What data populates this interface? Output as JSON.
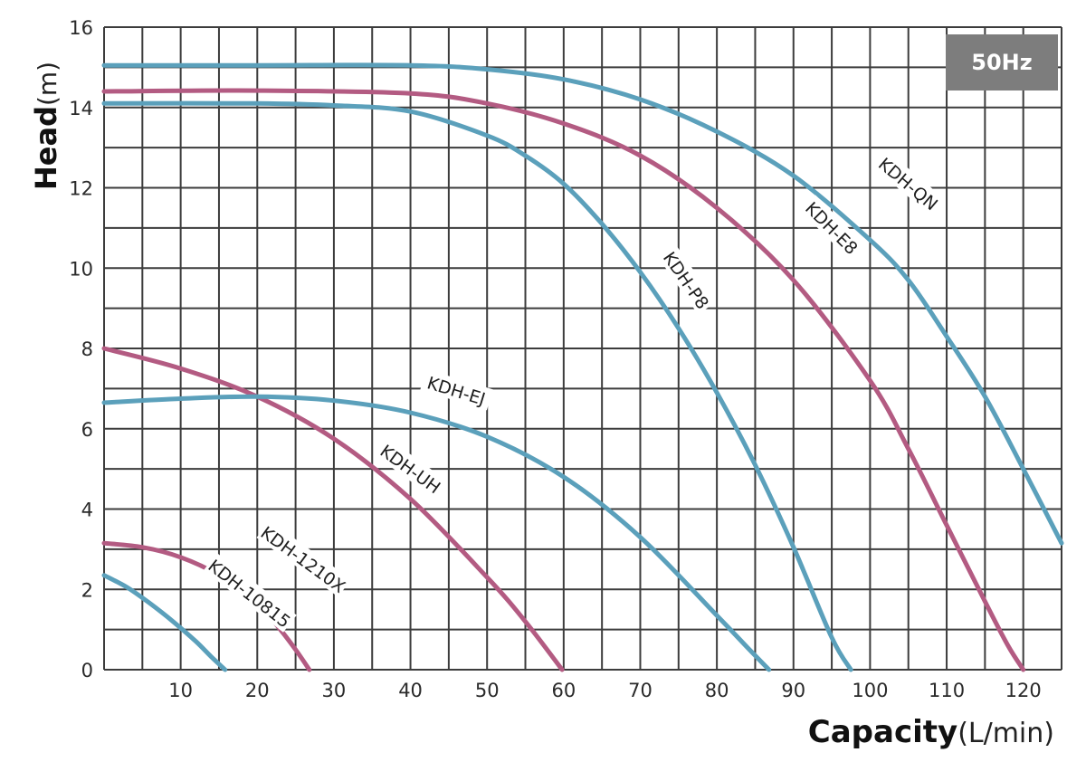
{
  "chart_data": {
    "type": "line",
    "badge": "50Hz",
    "xlabel": "Capacity",
    "xunit": "(L/min)",
    "ylabel": "Head",
    "yunit": "(m)",
    "xlim": [
      0,
      125
    ],
    "ylim": [
      0,
      16
    ],
    "x_grid_step": 5,
    "y_grid_step": 2,
    "grid": true,
    "x_ticks": [
      10,
      20,
      30,
      40,
      50,
      60,
      70,
      80,
      90,
      100,
      110,
      120
    ],
    "y_ticks": [
      0,
      2,
      4,
      6,
      8,
      10,
      12,
      14,
      16
    ],
    "series": [
      {
        "name": "KDH-10815",
        "color": "#5ba0bb",
        "x": [
          0,
          3,
          6,
          9,
          12,
          14,
          15.8
        ],
        "y": [
          2.35,
          2.05,
          1.65,
          1.2,
          0.7,
          0.32,
          0
        ]
      },
      {
        "name": "KDH-1210X",
        "color": "#b35b82",
        "x": [
          0,
          5,
          10,
          15,
          20,
          23,
          25,
          26.8
        ],
        "y": [
          3.15,
          3.05,
          2.8,
          2.35,
          1.65,
          1.0,
          0.5,
          0
        ]
      },
      {
        "name": "KDH-UH",
        "color": "#b35b82",
        "x": [
          0,
          10,
          20,
          30,
          40,
          50,
          55,
          59.8
        ],
        "y": [
          8.0,
          7.5,
          6.8,
          5.75,
          4.25,
          2.3,
          1.2,
          0
        ]
      },
      {
        "name": "KDH-EJ",
        "color": "#5ba0bb",
        "x": [
          0,
          10,
          20,
          30,
          40,
          50,
          60,
          70,
          80,
          84,
          86.8
        ],
        "y": [
          6.65,
          6.75,
          6.8,
          6.7,
          6.4,
          5.8,
          4.8,
          3.3,
          1.35,
          0.55,
          0
        ]
      },
      {
        "name": "KDH-P8",
        "color": "#5ba0bb",
        "x": [
          0,
          20,
          30,
          40,
          50,
          55,
          60,
          65,
          70,
          75,
          80,
          85,
          90,
          95,
          97.5
        ],
        "y": [
          14.1,
          14.1,
          14.05,
          13.9,
          13.3,
          12.8,
          12.1,
          11.1,
          9.9,
          8.5,
          6.9,
          5.1,
          3.05,
          0.8,
          0
        ]
      },
      {
        "name": "KDH-E8",
        "color": "#b35b82",
        "x": [
          0,
          20,
          40,
          50,
          60,
          70,
          80,
          90,
          100,
          105,
          110,
          115,
          118,
          120
        ],
        "y": [
          14.4,
          14.42,
          14.35,
          14.1,
          13.6,
          12.8,
          11.5,
          9.7,
          7.2,
          5.5,
          3.6,
          1.7,
          0.6,
          0
        ]
      },
      {
        "name": "KDH-QN",
        "color": "#5ba0bb",
        "x": [
          0,
          20,
          40,
          50,
          60,
          70,
          80,
          90,
          100,
          105,
          110,
          115,
          120,
          125
        ],
        "y": [
          15.05,
          15.05,
          15.05,
          14.95,
          14.7,
          14.2,
          13.4,
          12.3,
          10.7,
          9.7,
          8.3,
          6.8,
          5.0,
          3.15
        ]
      }
    ]
  }
}
